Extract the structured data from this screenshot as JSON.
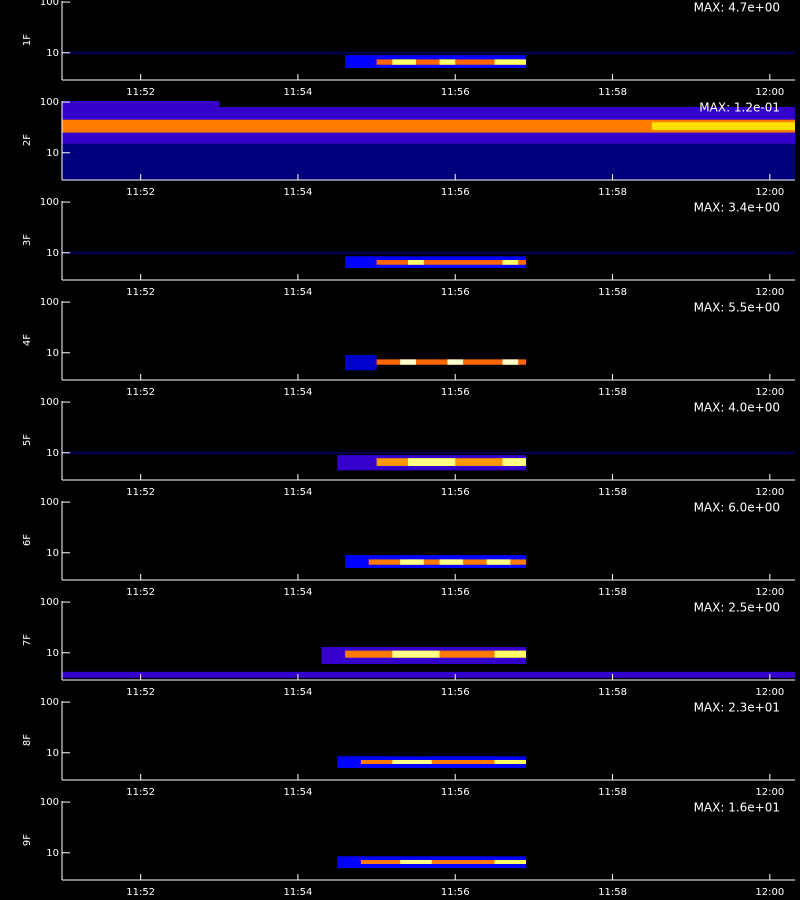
{
  "colormap": [
    "#000000",
    "#0000ff",
    "#ff0000",
    "#ffff00",
    "#ffffff"
  ],
  "chart_data": [
    {
      "type": "heatmap",
      "ylabel": "1F",
      "annotation": "MAX: 4.7e+00",
      "xlim": [
        711,
        720.32
      ],
      "ylim": [
        2.9,
        105
      ],
      "ylog": true,
      "xticks": [
        {
          "value": 712,
          "label": "11:52"
        },
        {
          "value": 714,
          "label": "11:54"
        },
        {
          "value": 716,
          "label": "11:56"
        },
        {
          "value": 718,
          "label": "11:58"
        },
        {
          "value": 720,
          "label": "12:00"
        }
      ],
      "yticks": [
        10,
        100
      ],
      "cells": [
        {
          "x": 711,
          "x2": 720.32,
          "y": 9.5,
          "y2": 10.5,
          "value": 0.08
        },
        {
          "x": 714.6,
          "x2": 716.9,
          "y": 5,
          "y2": 9,
          "value": 0.25
        },
        {
          "x": 715.0,
          "x2": 716.9,
          "y": 5.8,
          "y2": 7.4,
          "value": 0.6
        },
        {
          "x": 715.2,
          "x2": 715.5,
          "y": 5.8,
          "y2": 7.4,
          "value": 0.85
        },
        {
          "x": 715.8,
          "x2": 716.0,
          "y": 5.8,
          "y2": 7.4,
          "value": 0.85
        },
        {
          "x": 716.5,
          "x2": 716.9,
          "y": 5.8,
          "y2": 7.4,
          "value": 0.85
        }
      ]
    },
    {
      "type": "heatmap",
      "ylabel": "2F",
      "annotation": "MAX: 1.2e-01",
      "xlim": [
        711,
        720.32
      ],
      "ylim": [
        2.9,
        105
      ],
      "ylog": true,
      "xticks": [
        {
          "value": 712,
          "label": "11:52"
        },
        {
          "value": 714,
          "label": "11:54"
        },
        {
          "value": 716,
          "label": "11:56"
        },
        {
          "value": 718,
          "label": "11:58"
        },
        {
          "value": 720,
          "label": "12:00"
        }
      ],
      "yticks": [
        10,
        100
      ],
      "cells": [
        {
          "x": 711,
          "x2": 720.32,
          "y": 2.9,
          "y2": 15,
          "value": 0.12
        },
        {
          "x": 711,
          "x2": 720.32,
          "y": 15,
          "y2": 80,
          "value": 0.3
        },
        {
          "x": 711,
          "x2": 713,
          "y": 80,
          "y2": 105,
          "value": 0.3
        },
        {
          "x": 711,
          "x2": 720.32,
          "y": 25,
          "y2": 45,
          "value": 0.62
        },
        {
          "x": 718.5,
          "x2": 720.32,
          "y": 28,
          "y2": 40,
          "value": 0.72
        }
      ]
    },
    {
      "type": "heatmap",
      "ylabel": "3F",
      "annotation": "MAX: 3.4e+00",
      "xlim": [
        711,
        720.32
      ],
      "ylim": [
        2.9,
        105
      ],
      "ylog": true,
      "xticks": [
        {
          "value": 712,
          "label": "11:52"
        },
        {
          "value": 714,
          "label": "11:54"
        },
        {
          "value": 716,
          "label": "11:56"
        },
        {
          "value": 718,
          "label": "11:58"
        },
        {
          "value": 720,
          "label": "12:00"
        }
      ],
      "yticks": [
        10,
        100
      ],
      "cells": [
        {
          "x": 711,
          "x2": 720.32,
          "y": 9.5,
          "y2": 10.5,
          "value": 0.08
        },
        {
          "x": 714.6,
          "x2": 716.9,
          "y": 5,
          "y2": 8.5,
          "value": 0.25
        },
        {
          "x": 715.0,
          "x2": 716.9,
          "y": 5.8,
          "y2": 7.2,
          "value": 0.6
        },
        {
          "x": 715.4,
          "x2": 715.6,
          "y": 5.8,
          "y2": 7.2,
          "value": 0.85
        },
        {
          "x": 716.6,
          "x2": 716.8,
          "y": 5.8,
          "y2": 7.2,
          "value": 0.85
        }
      ]
    },
    {
      "type": "heatmap",
      "ylabel": "4F",
      "annotation": "MAX: 5.5e+00",
      "xlim": [
        711,
        720.32
      ],
      "ylim": [
        2.9,
        105
      ],
      "ylog": true,
      "xticks": [
        {
          "value": 712,
          "label": "11:52"
        },
        {
          "value": 714,
          "label": "11:54"
        },
        {
          "value": 716,
          "label": "11:56"
        },
        {
          "value": 718,
          "label": "11:58"
        },
        {
          "value": 720,
          "label": "12:00"
        }
      ],
      "yticks": [
        10,
        100
      ],
      "cells": [
        {
          "x": 714.6,
          "x2": 715.0,
          "y": 4.5,
          "y2": 9,
          "value": 0.2
        },
        {
          "x": 715.0,
          "x2": 716.9,
          "y": 5.8,
          "y2": 7.4,
          "value": 0.6
        },
        {
          "x": 715.3,
          "x2": 715.5,
          "y": 5.8,
          "y2": 7.4,
          "value": 0.95
        },
        {
          "x": 715.9,
          "x2": 716.1,
          "y": 5.8,
          "y2": 7.4,
          "value": 0.95
        },
        {
          "x": 716.6,
          "x2": 716.8,
          "y": 5.8,
          "y2": 7.4,
          "value": 0.95
        }
      ]
    },
    {
      "type": "heatmap",
      "ylabel": "5F",
      "annotation": "MAX: 4.0e+00",
      "xlim": [
        711,
        720.32
      ],
      "ylim": [
        2.9,
        105
      ],
      "ylog": true,
      "xticks": [
        {
          "value": 712,
          "label": "11:52"
        },
        {
          "value": 714,
          "label": "11:54"
        },
        {
          "value": 716,
          "label": "11:56"
        },
        {
          "value": 718,
          "label": "11:58"
        },
        {
          "value": 720,
          "label": "12:00"
        }
      ],
      "yticks": [
        10,
        100
      ],
      "cells": [
        {
          "x": 711,
          "x2": 720.32,
          "y": 9.5,
          "y2": 10.5,
          "value": 0.08
        },
        {
          "x": 714.5,
          "x2": 716.9,
          "y": 4.5,
          "y2": 9,
          "value": 0.3
        },
        {
          "x": 715.0,
          "x2": 716.9,
          "y": 5.5,
          "y2": 7.8,
          "value": 0.65
        },
        {
          "x": 715.4,
          "x2": 716.0,
          "y": 5.5,
          "y2": 7.8,
          "value": 0.88
        },
        {
          "x": 716.6,
          "x2": 716.9,
          "y": 5.5,
          "y2": 7.8,
          "value": 0.88
        }
      ]
    },
    {
      "type": "heatmap",
      "ylabel": "6F",
      "annotation": "MAX: 6.0e+00",
      "xlim": [
        711,
        720.32
      ],
      "ylim": [
        2.9,
        105
      ],
      "ylog": true,
      "xticks": [
        {
          "value": 712,
          "label": "11:52"
        },
        {
          "value": 714,
          "label": "11:54"
        },
        {
          "value": 716,
          "label": "11:56"
        },
        {
          "value": 718,
          "label": "11:58"
        },
        {
          "value": 720,
          "label": "12:00"
        }
      ],
      "yticks": [
        10,
        100
      ],
      "cells": [
        {
          "x": 714.6,
          "x2": 716.9,
          "y": 5,
          "y2": 9,
          "value": 0.25
        },
        {
          "x": 714.9,
          "x2": 716.9,
          "y": 5.8,
          "y2": 7.4,
          "value": 0.62
        },
        {
          "x": 715.3,
          "x2": 715.6,
          "y": 5.8,
          "y2": 7.4,
          "value": 0.88
        },
        {
          "x": 715.8,
          "x2": 716.1,
          "y": 5.8,
          "y2": 7.4,
          "value": 0.88
        },
        {
          "x": 716.4,
          "x2": 716.7,
          "y": 5.8,
          "y2": 7.4,
          "value": 0.88
        }
      ]
    },
    {
      "type": "heatmap",
      "ylabel": "7F",
      "annotation": "MAX: 2.5e+00",
      "xlim": [
        711,
        720.32
      ],
      "ylim": [
        2.9,
        105
      ],
      "ylog": true,
      "xticks": [
        {
          "value": 712,
          "label": "11:52"
        },
        {
          "value": 714,
          "label": "11:54"
        },
        {
          "value": 716,
          "label": "11:56"
        },
        {
          "value": 718,
          "label": "11:58"
        },
        {
          "value": 720,
          "label": "12:00"
        }
      ],
      "yticks": [
        10,
        100
      ],
      "cells": [
        {
          "x": 711,
          "x2": 720.32,
          "y": 3.2,
          "y2": 4.2,
          "value": 0.3
        },
        {
          "x": 714.3,
          "x2": 716.9,
          "y": 6,
          "y2": 13,
          "value": 0.3
        },
        {
          "x": 714.6,
          "x2": 716.9,
          "y": 8,
          "y2": 11,
          "value": 0.62
        },
        {
          "x": 715.2,
          "x2": 715.8,
          "y": 8,
          "y2": 11,
          "value": 0.88
        },
        {
          "x": 716.5,
          "x2": 716.9,
          "y": 8,
          "y2": 11,
          "value": 0.85
        }
      ]
    },
    {
      "type": "heatmap",
      "ylabel": "8F",
      "annotation": "MAX: 2.3e+01",
      "xlim": [
        711,
        720.32
      ],
      "ylim": [
        2.9,
        105
      ],
      "ylog": true,
      "xticks": [
        {
          "value": 712,
          "label": "11:52"
        },
        {
          "value": 714,
          "label": "11:54"
        },
        {
          "value": 716,
          "label": "11:56"
        },
        {
          "value": 718,
          "label": "11:58"
        },
        {
          "value": 720,
          "label": "12:00"
        }
      ],
      "yticks": [
        10,
        100
      ],
      "cells": [
        {
          "x": 714.5,
          "x2": 716.9,
          "y": 5,
          "y2": 8.5,
          "value": 0.25
        },
        {
          "x": 714.8,
          "x2": 716.9,
          "y": 6,
          "y2": 7.2,
          "value": 0.62
        },
        {
          "x": 715.2,
          "x2": 715.7,
          "y": 6,
          "y2": 7.2,
          "value": 0.88
        },
        {
          "x": 716.5,
          "x2": 716.9,
          "y": 6,
          "y2": 7.2,
          "value": 0.85
        }
      ]
    },
    {
      "type": "heatmap",
      "ylabel": "9F",
      "annotation": "MAX: 1.6e+01",
      "xlim": [
        711,
        720.32
      ],
      "ylim": [
        2.9,
        105
      ],
      "ylog": true,
      "xticks": [
        {
          "value": 712,
          "label": "11:52"
        },
        {
          "value": 714,
          "label": "11:54"
        },
        {
          "value": 716,
          "label": "11:56"
        },
        {
          "value": 718,
          "label": "11:58"
        },
        {
          "value": 720,
          "label": "12:00"
        }
      ],
      "yticks": [
        10,
        100
      ],
      "cells": [
        {
          "x": 714.5,
          "x2": 716.9,
          "y": 5,
          "y2": 8.5,
          "value": 0.25
        },
        {
          "x": 714.8,
          "x2": 716.9,
          "y": 6,
          "y2": 7.2,
          "value": 0.62
        },
        {
          "x": 715.3,
          "x2": 715.7,
          "y": 6,
          "y2": 7.2,
          "value": 0.88
        },
        {
          "x": 716.5,
          "x2": 716.9,
          "y": 6,
          "y2": 7.2,
          "value": 0.85
        }
      ]
    }
  ]
}
